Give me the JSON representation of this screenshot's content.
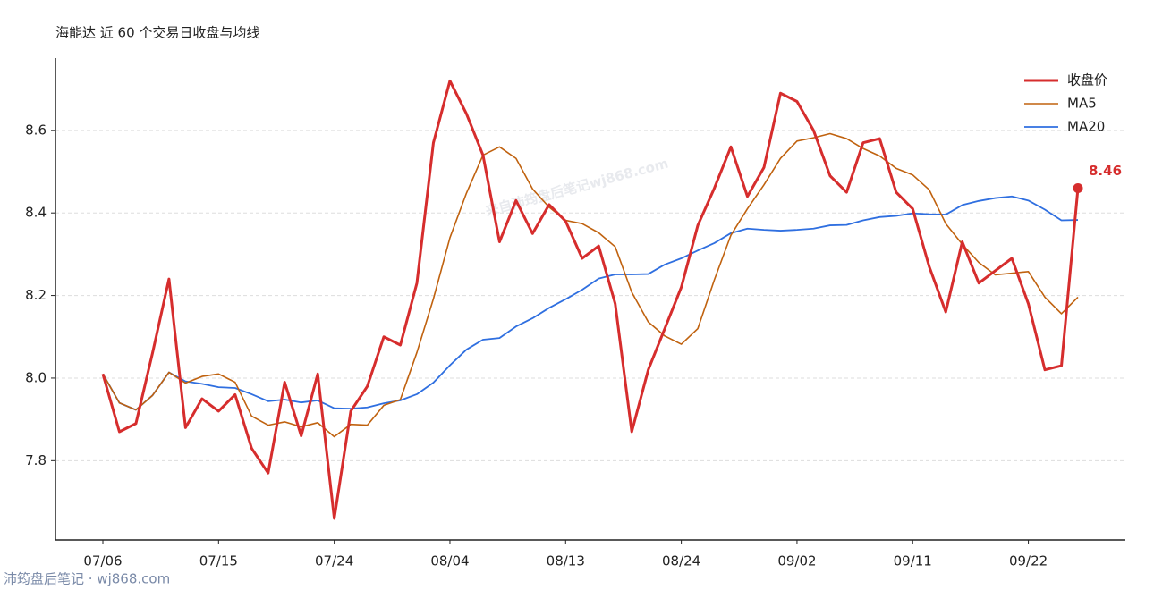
{
  "chart_data": {
    "type": "line",
    "title": "海能达 近 60 个交易日收盘与均线",
    "categories": [
      "07/06",
      null,
      null,
      null,
      null,
      null,
      null,
      "07/15",
      null,
      null,
      null,
      null,
      null,
      null,
      "07/24",
      null,
      null,
      null,
      null,
      null,
      null,
      "08/04",
      null,
      null,
      null,
      null,
      null,
      null,
      "08/13",
      null,
      null,
      null,
      null,
      null,
      null,
      "08/24",
      null,
      null,
      null,
      null,
      null,
      null,
      "09/02",
      null,
      null,
      null,
      null,
      null,
      null,
      "09/11",
      null,
      null,
      null,
      null,
      null,
      null,
      "09/22",
      null,
      null,
      null
    ],
    "series": [
      {
        "name": "收盘价",
        "color": "#d62d2d",
        "values": [
          8.01,
          7.87,
          7.89,
          8.06,
          8.24,
          7.88,
          7.95,
          7.92,
          7.96,
          7.83,
          7.77,
          7.99,
          7.86,
          8.01,
          7.66,
          7.92,
          7.98,
          8.1,
          8.08,
          8.23,
          8.57,
          8.72,
          8.64,
          8.54,
          8.33,
          8.43,
          8.35,
          8.42,
          8.38,
          8.29,
          8.32,
          8.18,
          7.87,
          8.02,
          8.12,
          8.22,
          8.37,
          8.46,
          8.56,
          8.44,
          8.51,
          8.69,
          8.67,
          8.6,
          8.49,
          8.45,
          8.57,
          8.58,
          8.45,
          8.41,
          8.27,
          8.16,
          8.33,
          8.23,
          8.26,
          8.29,
          8.18,
          8.02,
          8.03,
          8.46
        ]
      },
      {
        "name": "MA5",
        "color": "#c0620f",
        "values": [
          8.01,
          7.94,
          7.923,
          7.958,
          8.014,
          7.988,
          8.004,
          8.01,
          7.99,
          7.908,
          7.886,
          7.894,
          7.882,
          7.892,
          7.858,
          7.888,
          7.886,
          7.934,
          7.948,
          8.062,
          8.192,
          8.34,
          8.448,
          8.54,
          8.56,
          8.532,
          8.458,
          8.414,
          8.382,
          8.374,
          8.352,
          8.318,
          8.208,
          8.136,
          8.102,
          8.082,
          8.12,
          8.238,
          8.346,
          8.41,
          8.468,
          8.532,
          8.574,
          8.582,
          8.592,
          8.58,
          8.556,
          8.538,
          8.508,
          8.492,
          8.456,
          8.374,
          8.324,
          8.28,
          8.25,
          8.254,
          8.258,
          8.196,
          8.156,
          8.196
        ]
      },
      {
        "name": "MA20",
        "color": "#2f6fe0",
        "values": [
          8.01,
          7.94,
          7.923,
          7.958,
          8.014,
          7.992,
          7.986,
          7.978,
          7.976,
          7.961,
          7.944,
          7.948,
          7.941,
          7.946,
          7.927,
          7.926,
          7.929,
          7.939,
          7.946,
          7.961,
          7.989,
          8.031,
          8.069,
          8.093,
          8.097,
          8.125,
          8.145,
          8.17,
          8.191,
          8.214,
          8.241,
          8.251,
          8.251,
          8.252,
          8.275,
          8.29,
          8.309,
          8.327,
          8.351,
          8.362,
          8.359,
          8.357,
          8.359,
          8.362,
          8.37,
          8.371,
          8.382,
          8.39,
          8.393,
          8.399,
          8.397,
          8.396,
          8.419,
          8.429,
          8.436,
          8.44,
          8.43,
          8.408,
          8.382,
          8.383
        ]
      }
    ],
    "ylim": [
      7.608,
      8.775
    ],
    "yticks": [
      7.8,
      {
        "value": 8,
        "label": "8.0"
      },
      8.2,
      8.4,
      8.6
    ],
    "grid": true,
    "legend": "upper right",
    "watermark": "来自沛筠盘后笔记wj868.com",
    "footer": "沛筠盘后笔记 · wj868.com"
  }
}
